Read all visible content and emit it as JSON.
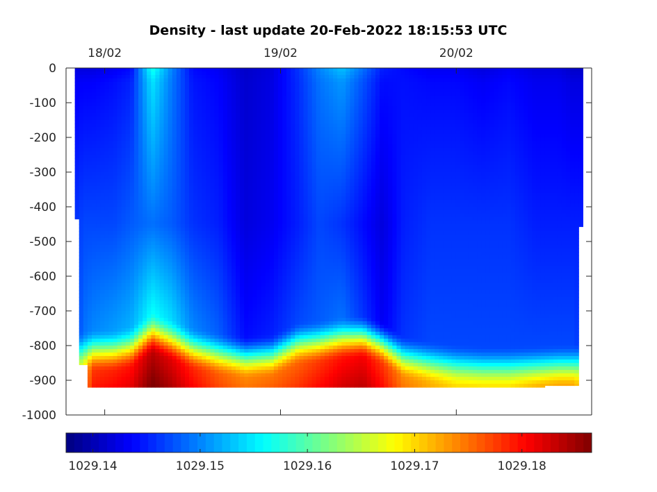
{
  "chart_data": {
    "type": "heatmap",
    "title": "Density - last update 20-Feb-2022 18:15:53 UTC",
    "x_ticks": [
      "18/02",
      "19/02",
      "20/02"
    ],
    "x_tick_days": [
      18.0,
      19.0,
      20.0
    ],
    "xlim_days": [
      17.78,
      20.77
    ],
    "y_ticks": [
      "0",
      "-100",
      "-200",
      "-300",
      "-400",
      "-500",
      "-600",
      "-700",
      "-800",
      "-900",
      "-1000"
    ],
    "y_tick_values": [
      0,
      -100,
      -200,
      -300,
      -400,
      -500,
      -600,
      -700,
      -800,
      -900,
      -1000
    ],
    "ylim": [
      -1000,
      0
    ],
    "colorbar": {
      "ticks": [
        "1029.14",
        "1029.15",
        "1029.16",
        "1029.17",
        "1029.18"
      ],
      "tick_values": [
        1029.14,
        1029.15,
        1029.16,
        1029.17,
        1029.18
      ],
      "range": [
        1029.1375,
        1029.1865
      ],
      "colormap": "jet"
    },
    "profiles": [
      {
        "t": 17.83,
        "bottom": -435,
        "surface": 1029.142,
        "mid": 1029.146,
        "deep": 1029.146,
        "cline": -850,
        "base": 1029.168
      },
      {
        "t": 17.88,
        "bottom": -855,
        "surface": 1029.142,
        "mid": 1029.147,
        "deep": 1029.149,
        "cline": -845,
        "base": 1029.17
      },
      {
        "t": 17.93,
        "bottom": -920,
        "surface": 1029.142,
        "mid": 1029.147,
        "deep": 1029.15,
        "cline": -840,
        "base": 1029.178
      },
      {
        "t": 18.05,
        "bottom": -920,
        "surface": 1029.143,
        "mid": 1029.147,
        "deep": 1029.151,
        "cline": -840,
        "base": 1029.179
      },
      {
        "t": 18.15,
        "bottom": -920,
        "surface": 1029.144,
        "mid": 1029.148,
        "deep": 1029.152,
        "cline": -830,
        "base": 1029.18
      },
      {
        "t": 18.27,
        "bottom": -920,
        "surface": 1029.157,
        "mid": 1029.149,
        "deep": 1029.156,
        "cline": -790,
        "base": 1029.184
      },
      {
        "t": 18.38,
        "bottom": -920,
        "surface": 1029.15,
        "mid": 1029.148,
        "deep": 1029.154,
        "cline": -810,
        "base": 1029.182
      },
      {
        "t": 18.5,
        "bottom": -920,
        "surface": 1029.144,
        "mid": 1029.146,
        "deep": 1029.15,
        "cline": -835,
        "base": 1029.179
      },
      {
        "t": 18.65,
        "bottom": -920,
        "surface": 1029.143,
        "mid": 1029.145,
        "deep": 1029.148,
        "cline": -850,
        "base": 1029.176
      },
      {
        "t": 18.8,
        "bottom": -920,
        "surface": 1029.141,
        "mid": 1029.142,
        "deep": 1029.144,
        "cline": -860,
        "base": 1029.174
      },
      {
        "t": 18.95,
        "bottom": -920,
        "surface": 1029.142,
        "mid": 1029.143,
        "deep": 1029.145,
        "cline": -855,
        "base": 1029.175
      },
      {
        "t": 19.1,
        "bottom": -920,
        "surface": 1029.146,
        "mid": 1029.145,
        "deep": 1029.147,
        "cline": -820,
        "base": 1029.176
      },
      {
        "t": 19.22,
        "bottom": -920,
        "surface": 1029.15,
        "mid": 1029.147,
        "deep": 1029.148,
        "cline": -815,
        "base": 1029.178
      },
      {
        "t": 19.35,
        "bottom": -920,
        "surface": 1029.153,
        "mid": 1029.146,
        "deep": 1029.149,
        "cline": -805,
        "base": 1029.18
      },
      {
        "t": 19.47,
        "bottom": -920,
        "surface": 1029.149,
        "mid": 1029.144,
        "deep": 1029.146,
        "cline": -800,
        "base": 1029.181
      },
      {
        "t": 19.58,
        "bottom": -920,
        "surface": 1029.145,
        "mid": 1029.142,
        "deep": 1029.143,
        "cline": -820,
        "base": 1029.178
      },
      {
        "t": 19.7,
        "bottom": -920,
        "surface": 1029.144,
        "mid": 1029.145,
        "deep": 1029.146,
        "cline": -860,
        "base": 1029.174
      },
      {
        "t": 19.85,
        "bottom": -920,
        "surface": 1029.143,
        "mid": 1029.146,
        "deep": 1029.147,
        "cline": -875,
        "base": 1029.172
      },
      {
        "t": 20.0,
        "bottom": -920,
        "surface": 1029.143,
        "mid": 1029.146,
        "deep": 1029.147,
        "cline": -885,
        "base": 1029.17
      },
      {
        "t": 20.15,
        "bottom": -920,
        "surface": 1029.142,
        "mid": 1029.146,
        "deep": 1029.147,
        "cline": -890,
        "base": 1029.17
      },
      {
        "t": 20.3,
        "bottom": -920,
        "surface": 1029.143,
        "mid": 1029.146,
        "deep": 1029.147,
        "cline": -890,
        "base": 1029.17
      },
      {
        "t": 20.45,
        "bottom": -920,
        "surface": 1029.142,
        "mid": 1029.145,
        "deep": 1029.147,
        "cline": -888,
        "base": 1029.172
      },
      {
        "t": 20.58,
        "bottom": -915,
        "surface": 1029.142,
        "mid": 1029.145,
        "deep": 1029.147,
        "cline": -885,
        "base": 1029.173
      },
      {
        "t": 20.66,
        "bottom": -915,
        "surface": 1029.141,
        "mid": 1029.145,
        "deep": 1029.147,
        "cline": -885,
        "base": 1029.173
      },
      {
        "t": 20.72,
        "bottom": -457,
        "surface": 1029.141,
        "mid": 1029.145,
        "deep": 1029.146,
        "cline": -880,
        "base": 1029.17
      }
    ]
  }
}
